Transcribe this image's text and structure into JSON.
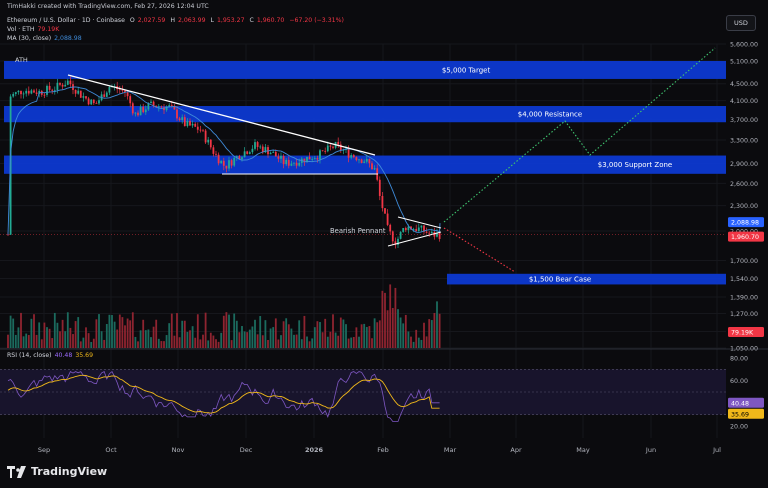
{
  "header": {
    "attribution": "TimHakki created with TradingView.com, Feb 27, 2026 12:04 UTC",
    "symbol": "Ethereum / U.S. Dollar · 1D · Coinbase",
    "open_label": "O",
    "open": "2,027.59",
    "high_label": "H",
    "high": "2,063.99",
    "low_label": "L",
    "low": "1,953.27",
    "close_label": "C",
    "close": "1,960.70",
    "change": "−67.20 (−3.31%)",
    "volume_label": "Vol · ETH",
    "volume": "79.19K",
    "ma_label": "MA (30, close)",
    "ma_value": "2,088.98"
  },
  "currency_button": "USD",
  "rsi_header": {
    "label": "RSI (14, close)",
    "rsi": "40.48",
    "ma": "35.69"
  },
  "logo_text": "TradingView",
  "colors": {
    "background": "#0b0b0e",
    "zone": "#0d3bd6",
    "up": "#22ab94",
    "down": "#f23645",
    "ma": "#3f8bd9",
    "rsi": "#7e57c2",
    "rsi_ma": "#f0b81a",
    "up_projection": "#3fc46f",
    "down_projection": "#f23645"
  },
  "chart_data": {
    "type": "candlestick",
    "price_axis": {
      "ticks": [
        "5,600.00",
        "5,100.00",
        "4,500.00",
        "4,100.00",
        "3,700.00",
        "3,300.00",
        "2,900.00",
        "2,600.00",
        "2,300.00",
        "2,000.00",
        "1,700.00",
        "1,540.00",
        "1,390.00",
        "1,270.00",
        "1,150.00",
        "1,050.00"
      ],
      "ylim": [
        1000,
        6000
      ],
      "scale": "log"
    },
    "time_axis": {
      "ticks": [
        "Sep",
        "Oct",
        "Nov",
        "Dec",
        "2026",
        "Feb",
        "Mar",
        "Apr",
        "May",
        "Jun",
        "Jul"
      ]
    },
    "price_badges": [
      {
        "label": "2,088.98",
        "value": 2088.98,
        "color": "#2962ff"
      },
      {
        "label": "1,960.70",
        "value": 1960.7,
        "color": "#f23645"
      },
      {
        "label": "79.19K",
        "value": 79.19,
        "color": "#f23645"
      }
    ],
    "zones": [
      {
        "label": "$5,000 Target",
        "top": 5100,
        "bottom": 4620,
        "x_start": 0
      },
      {
        "label": "$4,000 Resistance",
        "top": 3980,
        "bottom": 3640,
        "x_start": 0
      },
      {
        "label": "$3,000 Support Zone",
        "top": 3030,
        "bottom": 2740,
        "x_start": 0
      },
      {
        "label": "$1,500 Bear Case",
        "top": 1580,
        "bottom": 1490,
        "x_start": 0.63
      }
    ],
    "annotations": [
      "ATH",
      "Bearish Pennant"
    ],
    "pennant_upper": [
      [
        2080,
        0.535
      ],
      [
        1990,
        0.575
      ]
    ],
    "pennant_lower": [
      [
        1790,
        0.505
      ],
      [
        1960,
        0.575
      ]
    ],
    "downtrend": [
      [
        4380,
        0.09
      ],
      [
        3250,
        0.43
      ],
      [
        3000,
        0.49
      ]
    ],
    "support_line": [
      [
        2740,
        0.29
      ],
      [
        2740,
        0.49
      ]
    ],
    "projection_up": [
      [
        2080,
        0.58
      ],
      [
        3650,
        0.775
      ],
      [
        3000,
        0.82
      ],
      [
        5600,
        0.99
      ]
    ],
    "projection_down": [
      [
        1960,
        0.585
      ],
      [
        1510,
        0.71
      ]
    ],
    "rsi": {
      "ticks": [
        "80.00",
        "60.00",
        "40.00",
        "20.00"
      ],
      "ylim": [
        10,
        90
      ],
      "overbought": 70,
      "oversold": 30,
      "last": 40.48,
      "last_ma": 35.69
    }
  }
}
